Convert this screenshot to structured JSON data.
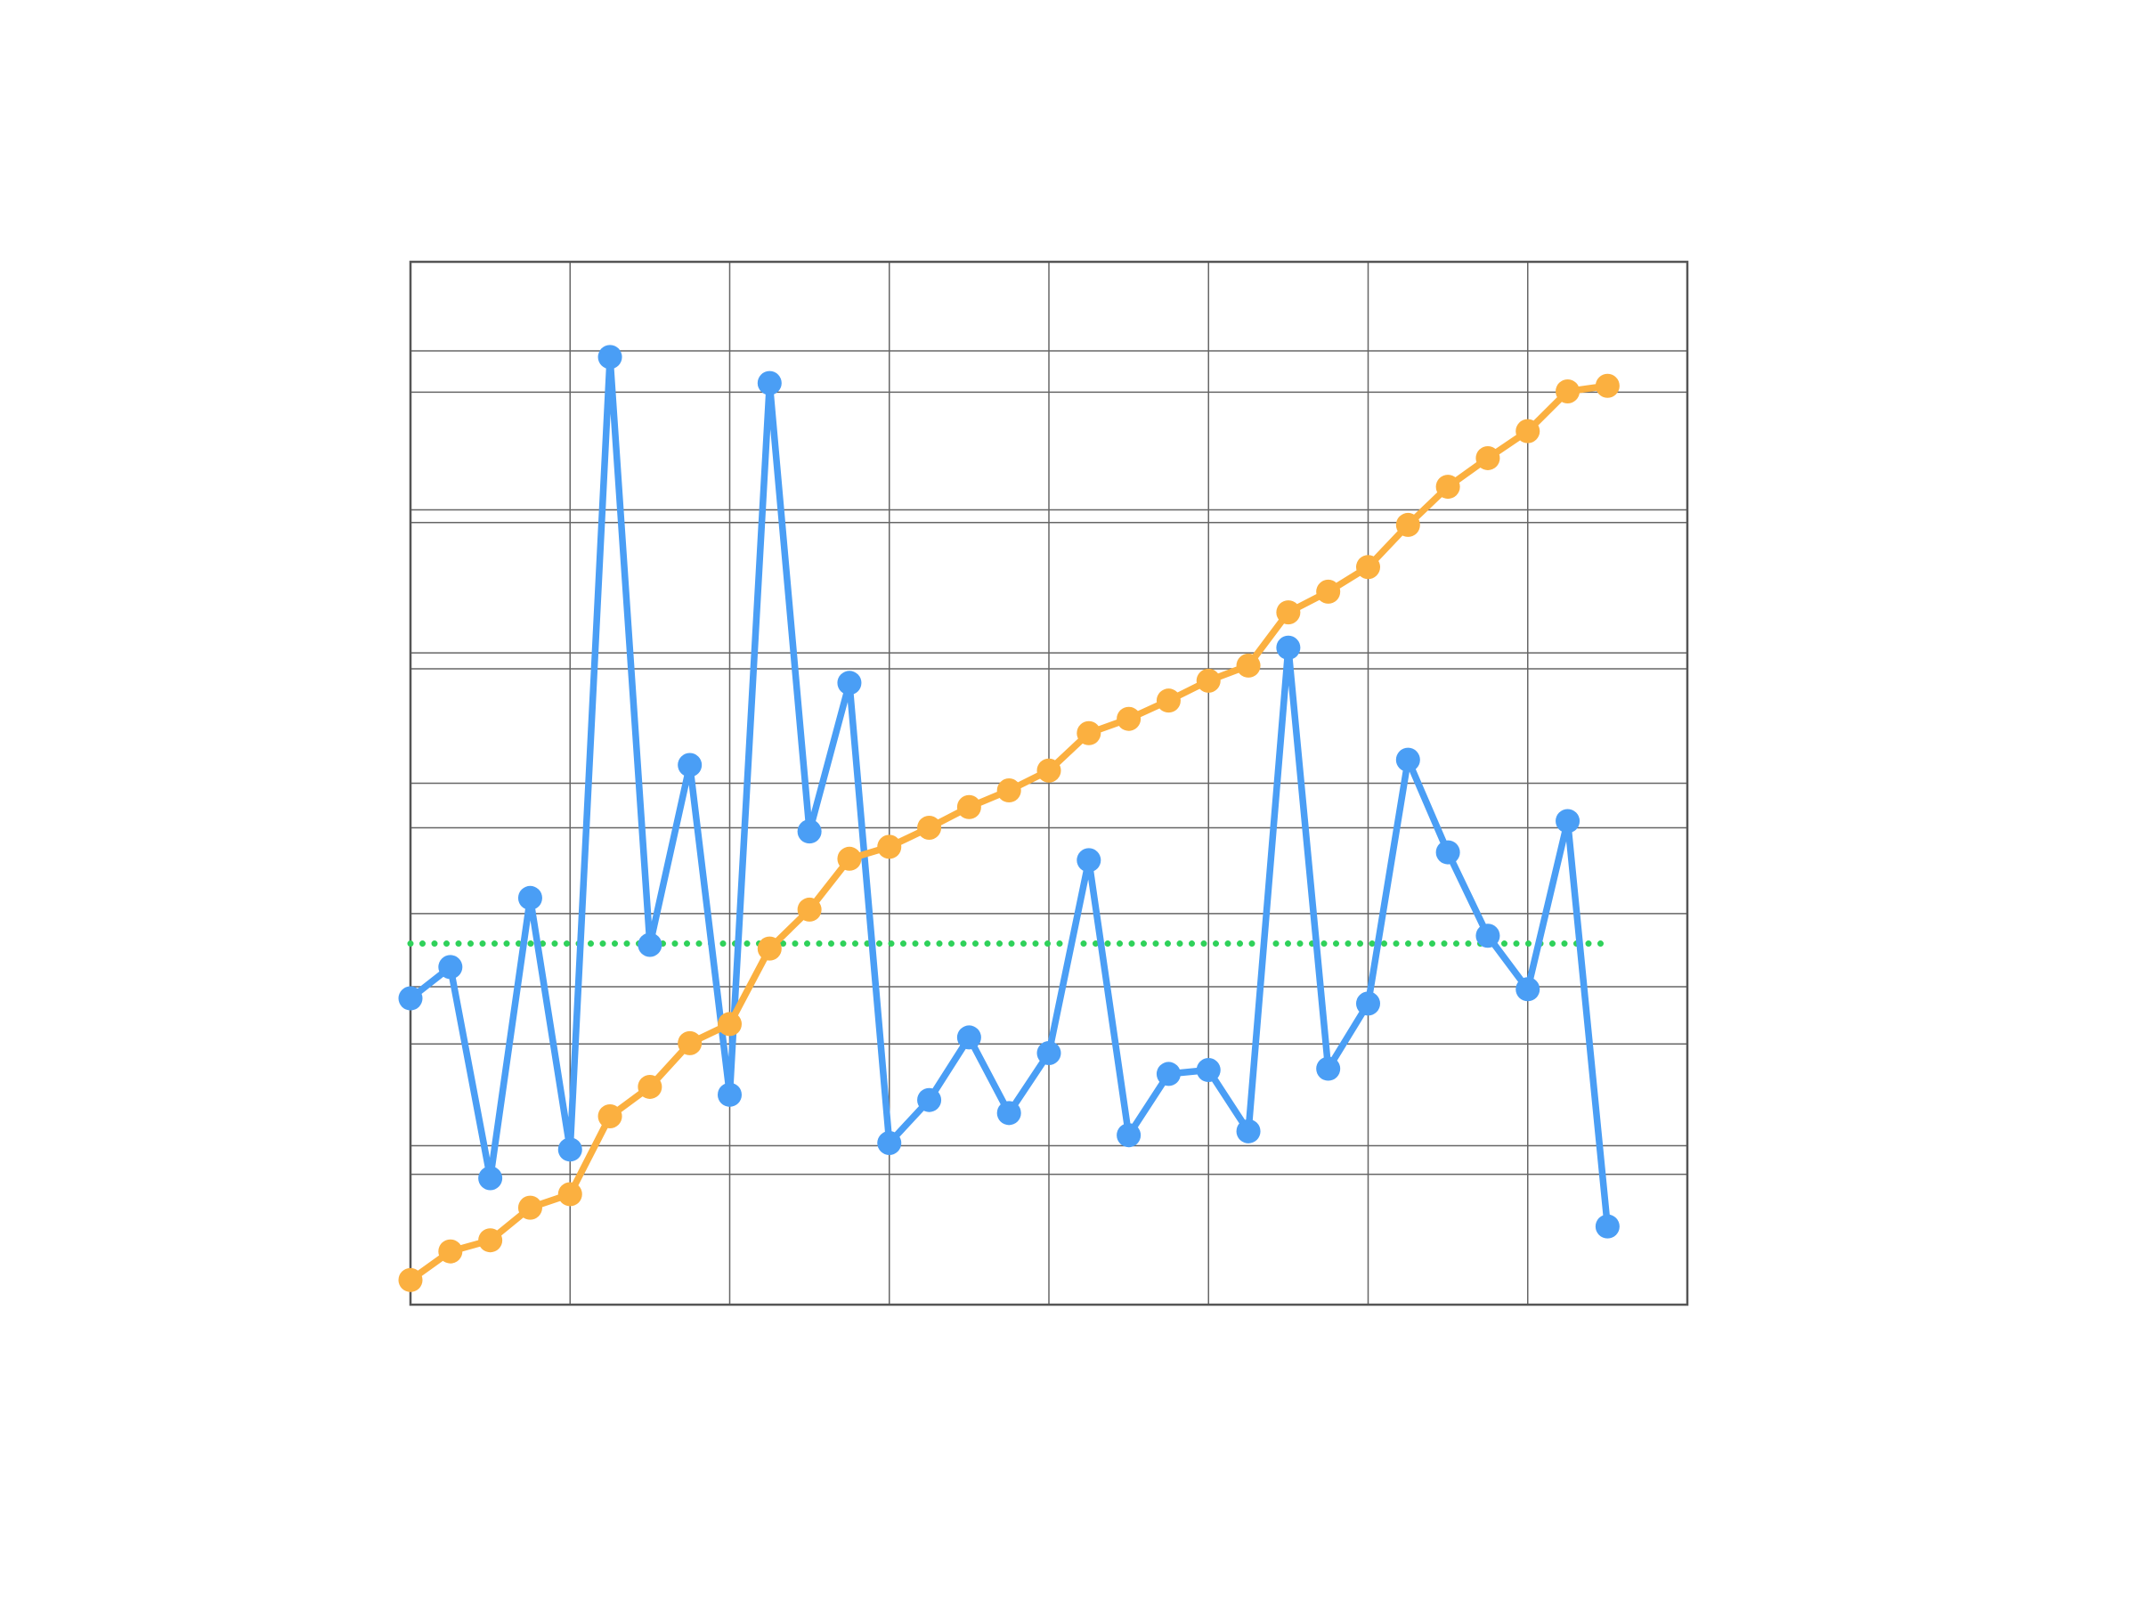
{
  "chart_data": {
    "type": "line",
    "x": [
      0,
      1,
      2,
      3,
      4,
      5,
      6,
      7,
      8,
      9,
      10,
      11,
      12,
      13,
      14,
      15,
      16,
      17,
      18,
      19,
      20,
      21,
      22,
      23,
      24,
      25,
      26,
      27,
      28,
      29,
      30
    ],
    "series": [
      {
        "color": "#4a9ef5",
        "values": [
          23.5,
          25.9,
          9.7,
          31.2,
          11.9,
          72.7,
          27.6,
          41.4,
          16.1,
          70.7,
          36.3,
          47.7,
          12.4,
          15.7,
          20.5,
          14.7,
          19.3,
          34.1,
          13.0,
          17.7,
          18.0,
          13.3,
          50.4,
          18.1,
          23.1,
          41.8,
          34.7,
          28.3,
          24.2,
          37.1,
          6.0
        ]
      },
      {
        "color": "#fbb040",
        "axis": "y2",
        "values": [
          3.1,
          6.7,
          8.1,
          12.2,
          13.9,
          23.7,
          27.4,
          32.9,
          35.3,
          44.8,
          49.7,
          56.1,
          57.6,
          60.0,
          62.6,
          64.7,
          67.2,
          71.9,
          73.7,
          76.0,
          78.5,
          80.4,
          87.1,
          89.7,
          92.8,
          98.1,
          102.9,
          106.5,
          109.9,
          114.9,
          115.6
        ]
      }
    ],
    "reference_line": {
      "value": 27.7,
      "color": "#2fd15a"
    },
    "xlim": [
      0,
      32
    ],
    "xticks": [
      4,
      8,
      12,
      16,
      20,
      24,
      28
    ],
    "ylim": [
      0,
      80
    ],
    "yticks": [
      10,
      20,
      30,
      40,
      50,
      60,
      70
    ],
    "y2lim": [
      0,
      131.2
    ],
    "y2ticks": [
      20,
      40,
      60,
      80,
      100,
      120
    ],
    "grid": true
  }
}
